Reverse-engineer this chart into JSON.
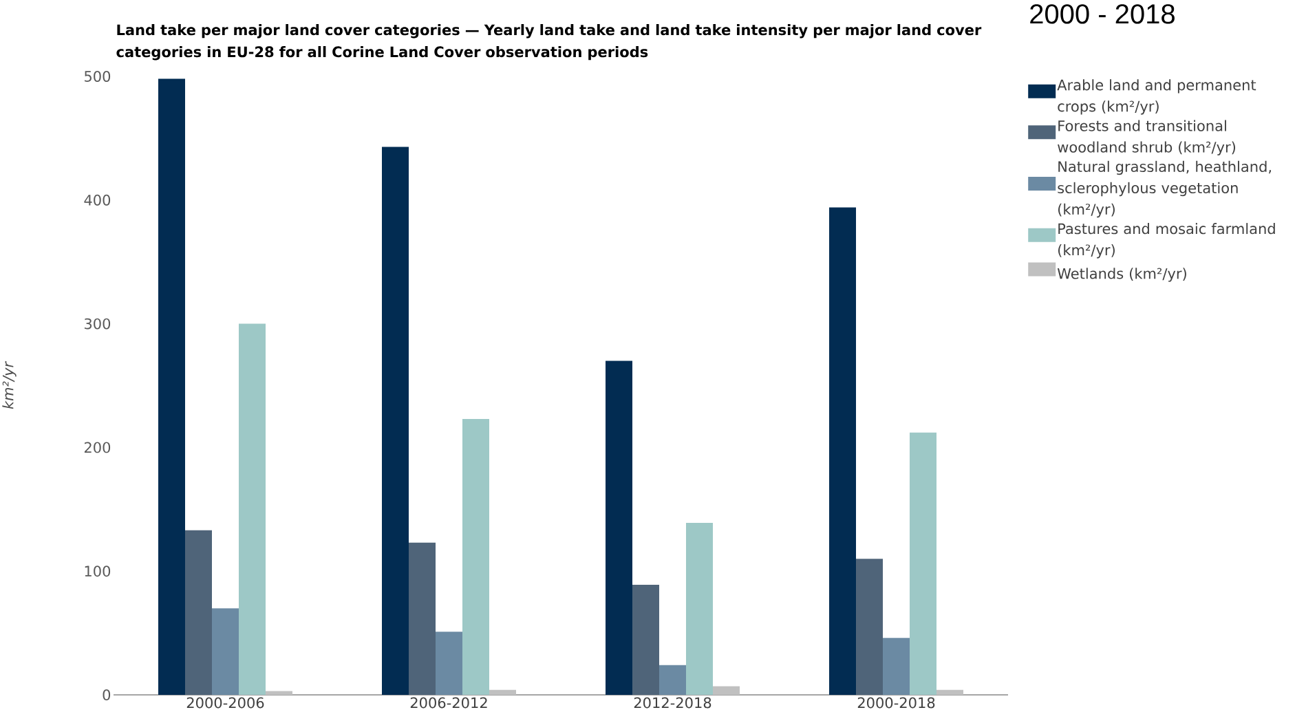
{
  "chart_data": {
    "type": "bar",
    "title": "Land take per major land cover categories — Yearly land take and land take intensity per major land cover categories in EU-28 for all Corine Land Cover observation periods",
    "ylabel": "km²/yr",
    "categories": [
      "2000-2006",
      "2006-2012",
      "2012-2018",
      "2000-2018"
    ],
    "series": [
      {
        "name": "Arable land and permanent crops (km²/yr)",
        "color": "#022c52",
        "values": [
          498,
          443,
          270,
          394
        ]
      },
      {
        "name": "Forests and transitional woodland shrub (km²/yr)",
        "color": "#4f6479",
        "values": [
          133,
          123,
          89,
          110
        ]
      },
      {
        "name": "Natural grassland, heathland, sclerophylous vegetation (km²/yr)",
        "color": "#6b8aa3",
        "values": [
          70,
          51,
          24,
          46
        ]
      },
      {
        "name": "Pastures and mosaic farmland (km²/yr)",
        "color": "#9dc8c6",
        "values": [
          300,
          223,
          139,
          212
        ]
      },
      {
        "name": "Wetlands (km²/yr)",
        "color": "#c0c0c0",
        "values": [
          3,
          4,
          7,
          4
        ]
      }
    ],
    "ylim": [
      0,
      500
    ],
    "yticks": [
      0,
      100,
      200,
      300,
      400,
      500
    ],
    "legend": "top right",
    "grid": false,
    "annotations": [
      "2000 - 2018"
    ]
  }
}
